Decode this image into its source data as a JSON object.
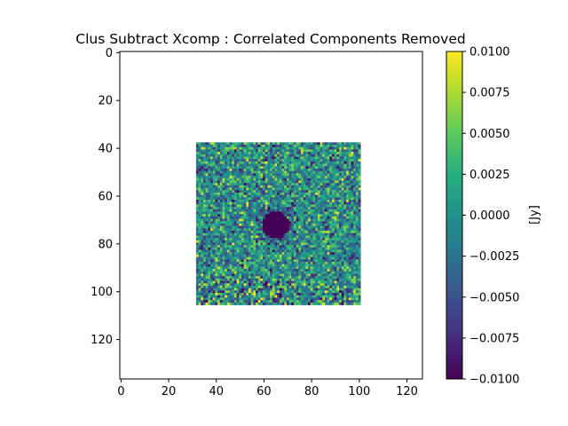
{
  "chart_data": {
    "type": "heatmap",
    "title": "Clus Subtract Xcomp : Correlated Components Removed",
    "xlabel": "",
    "ylabel": "",
    "xlim": [
      -0.5,
      126.5
    ],
    "ylim": [
      136.5,
      -0.5
    ],
    "x_ticks": [
      0,
      20,
      40,
      60,
      80,
      100,
      120
    ],
    "x_tick_labels": [
      "0",
      "20",
      "40",
      "60",
      "80",
      "100",
      "120"
    ],
    "y_ticks": [
      0,
      20,
      40,
      60,
      80,
      100,
      120
    ],
    "y_tick_labels": [
      "0",
      "20",
      "40",
      "60",
      "80",
      "100",
      "120"
    ],
    "grid": false,
    "image_extent": {
      "x": [
        32,
        100
      ],
      "y": [
        38,
        105
      ]
    },
    "image_background": "#ffffff",
    "colormap": "viridis",
    "colormap_stops": [
      "#440154",
      "#3b528b",
      "#21918c",
      "#5ec962",
      "#fde725"
    ],
    "colorbar": {
      "label": "[Jy]",
      "vmin": -0.01,
      "vmax": 0.01,
      "ticks": [
        0.01,
        0.0075,
        0.005,
        0.0025,
        0.0,
        -0.0025,
        -0.005,
        -0.0075,
        -0.01
      ],
      "tick_labels": [
        "0.0100",
        "0.0075",
        "0.0050",
        "0.0025",
        "0.0000",
        "−0.0025",
        "−0.0050",
        "−0.0075",
        "−0.0100"
      ]
    },
    "features": {
      "central_deficit_center": [
        65,
        72
      ],
      "central_deficit_radius": 5.5,
      "central_deficit_value": -0.01,
      "noise_level": 0.004,
      "edge_noise_boost_rows": [
        95,
        105
      ]
    }
  }
}
